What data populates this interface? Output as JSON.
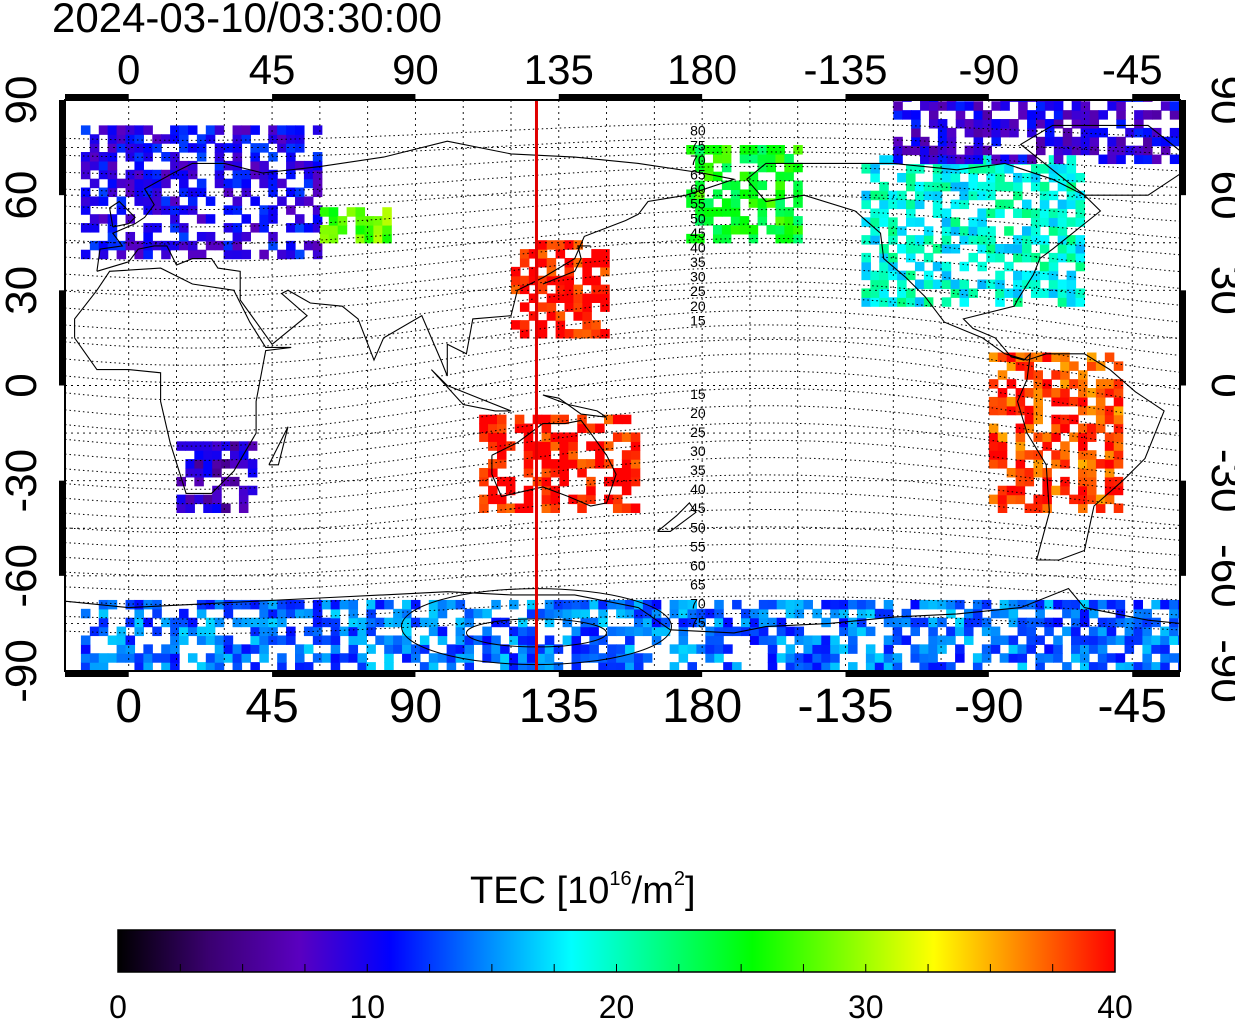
{
  "title": "2024-03-10/03:30:00",
  "map": {
    "x_ticks": [
      "0",
      "45",
      "90",
      "135",
      "180",
      "-135",
      "-90",
      "-45"
    ],
    "x_tick_lon": [
      0,
      45,
      90,
      135,
      180,
      225,
      270,
      315
    ],
    "y_ticks": [
      "90",
      "60",
      "30",
      "0",
      "-30",
      "-60",
      "-90"
    ],
    "y_tick_lat": [
      90,
      60,
      30,
      0,
      -30,
      -60,
      -90
    ],
    "lon_range": [
      -20,
      330
    ],
    "lat_range": [
      -90,
      90
    ],
    "marker_lon": 128,
    "marker_color": "#e00000",
    "contour_labels_north": [
      "80",
      "75",
      "70",
      "65",
      "60",
      "55",
      "50",
      "45",
      "40",
      "35",
      "30",
      "25",
      "20",
      "15"
    ],
    "contour_labels_south": [
      "15",
      "20",
      "25",
      "30",
      "35",
      "40",
      "45",
      "50",
      "55",
      "60",
      "65",
      "70",
      "75"
    ]
  },
  "colorbar": {
    "label_prefix": "TEC  [10",
    "label_exp": "16",
    "label_mid": "/m",
    "label_exp2": "2",
    "label_suffix": "]",
    "ticks": [
      "0",
      "10",
      "20",
      "30",
      "40"
    ],
    "min": 0,
    "max": 40,
    "colors": [
      "#000000",
      "#3a0070",
      "#5a00c0",
      "#0000ff",
      "#0080ff",
      "#00ffff",
      "#00ff80",
      "#00ff00",
      "#80ff00",
      "#ffff00",
      "#ff8000",
      "#ff0000"
    ]
  },
  "chart_data": {
    "type": "heatmap",
    "title": "2024-03-10/03:30:00",
    "variable": "TEC",
    "unit": "10^16/m^2",
    "value_range": [
      0,
      40
    ],
    "lon_ticks": [
      0,
      45,
      90,
      135,
      180,
      -135,
      -90,
      -45
    ],
    "lat_ticks": [
      90,
      60,
      30,
      0,
      -30,
      -60,
      -90
    ],
    "regions": [
      {
        "lon": [
          -15,
          60
        ],
        "lat": [
          40,
          80
        ],
        "tec": 10
      },
      {
        "lon": [
          60,
          80
        ],
        "lat": [
          45,
          55
        ],
        "tec": 28
      },
      {
        "lon": [
          120,
          150
        ],
        "lat": [
          15,
          45
        ],
        "tec": 40
      },
      {
        "lon": [
          110,
          160
        ],
        "lat": [
          -40,
          -10
        ],
        "tec": 40
      },
      {
        "lon": [
          175,
          210
        ],
        "lat": [
          45,
          75
        ],
        "tec": 25
      },
      {
        "lon": [
          230,
          300
        ],
        "lat": [
          25,
          70
        ],
        "tec": 19
      },
      {
        "lon": [
          270,
          310
        ],
        "lat": [
          -40,
          10
        ],
        "tec": 38
      },
      {
        "lon": [
          15,
          40
        ],
        "lat": [
          -40,
          -20
        ],
        "tec": 8
      },
      {
        "lon": [
          -15,
          330
        ],
        "lat": [
          -90,
          -70
        ],
        "tec": 14
      },
      {
        "lon": [
          240,
          330
        ],
        "lat": [
          70,
          90
        ],
        "tec": 9
      }
    ]
  }
}
